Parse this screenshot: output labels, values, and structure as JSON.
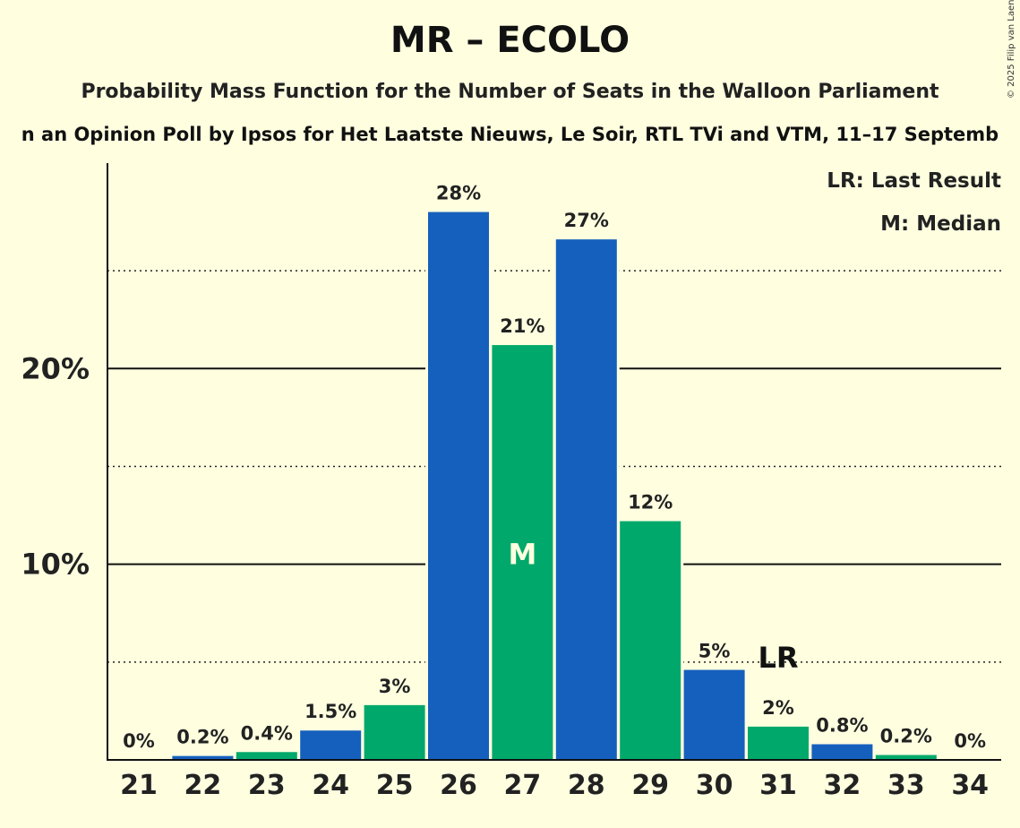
{
  "title": "MR – ECOLO",
  "subtitle": "Probability Mass Function for the Number of Seats in the Walloon Parliament",
  "subsubtitle": "n an Opinion Poll by Ipsos for Het Laatste Nieuws, Le Soir, RTL TVi and VTM, 11–17 Septemb",
  "copyright": "© 2025 Filip van Laenen",
  "legend": {
    "last_result": "LR: Last Result",
    "median": "M: Median"
  },
  "colors": {
    "blue": "#1560bd",
    "green": "#00a86b",
    "background": "#ffffe0"
  },
  "chart_data": {
    "type": "bar",
    "categories": [
      "21",
      "22",
      "23",
      "24",
      "25",
      "26",
      "27",
      "28",
      "29",
      "30",
      "31",
      "32",
      "33",
      "34"
    ],
    "values": [
      0,
      0.2,
      0.4,
      1.5,
      2.8,
      28,
      21.2,
      26.6,
      12.2,
      4.6,
      1.7,
      0.8,
      0.25,
      0
    ],
    "data_labels": [
      "0%",
      "0.2%",
      "0.4%",
      "1.5%",
      "3%",
      "28%",
      "21%",
      "27%",
      "12%",
      "5%",
      "2%",
      "0.8%",
      "0.2%",
      "0%"
    ],
    "bar_colors": [
      "#00a86b",
      "#1560bd",
      "#00a86b",
      "#1560bd",
      "#00a86b",
      "#1560bd",
      "#00a86b",
      "#1560bd",
      "#00a86b",
      "#1560bd",
      "#00a86b",
      "#1560bd",
      "#00a86b",
      "#1560bd"
    ],
    "y_ticks": [
      {
        "value": 10,
        "label": "10%"
      },
      {
        "value": 20,
        "label": "20%"
      }
    ],
    "minor_gridlines": [
      5,
      15,
      25
    ],
    "ylim": [
      0,
      30.5
    ],
    "median_category": "27",
    "median_label": "M",
    "last_result_category": "31",
    "last_result_label": "LR",
    "legend_position": "top-right"
  }
}
